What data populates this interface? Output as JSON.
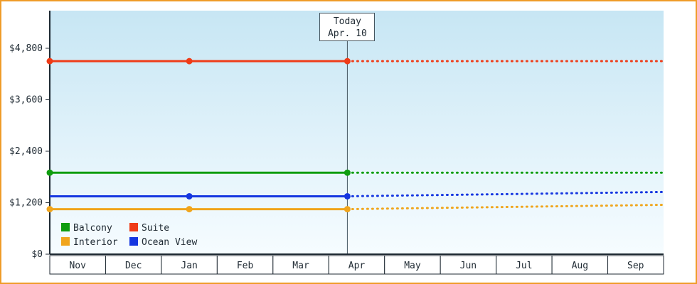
{
  "chart_data": {
    "type": "line",
    "title": "",
    "xlabel": "",
    "ylabel": "",
    "x_categories": [
      "Nov",
      "Dec",
      "Jan",
      "Feb",
      "Mar",
      "Apr",
      "May",
      "Jun",
      "Jul",
      "Aug",
      "Sep"
    ],
    "y_ticks": [
      {
        "value": 0,
        "label": "$0"
      },
      {
        "value": 1200,
        "label": "$1,200"
      },
      {
        "value": 2400,
        "label": "$2,400"
      },
      {
        "value": 3600,
        "label": "$3,600"
      },
      {
        "value": 4800,
        "label": "$4,800"
      }
    ],
    "ylim": [
      0,
      4800
    ],
    "today_marker": {
      "line1": "Today",
      "line2": "Apr. 10",
      "x_month_index": 5.333
    },
    "legend_position": "bottom-left",
    "series": [
      {
        "name": "Balcony",
        "color": "#0f9d0f",
        "solid": [
          [
            0,
            1900
          ],
          [
            5.333,
            1900
          ]
        ],
        "dotted": [
          [
            5.333,
            1900
          ],
          [
            11,
            1900
          ]
        ],
        "markers": [
          [
            0,
            1900
          ],
          [
            5.333,
            1900
          ]
        ]
      },
      {
        "name": "Suite",
        "color": "#ef3b17",
        "solid": [
          [
            0,
            4500
          ],
          [
            2.5,
            4500
          ],
          [
            5.333,
            4500
          ]
        ],
        "dotted": [
          [
            5.333,
            4500
          ],
          [
            11,
            4500
          ]
        ],
        "markers": [
          [
            0,
            4500
          ],
          [
            2.5,
            4500
          ],
          [
            5.333,
            4500
          ]
        ]
      },
      {
        "name": "Interior",
        "color": "#f0a51c",
        "solid": [
          [
            0,
            1050
          ],
          [
            2.5,
            1050
          ],
          [
            5.333,
            1050
          ]
        ],
        "dotted": [
          [
            5.333,
            1050
          ],
          [
            11,
            1150
          ]
        ],
        "markers": [
          [
            0,
            1050
          ],
          [
            2.5,
            1050
          ],
          [
            5.333,
            1050
          ]
        ]
      },
      {
        "name": "Ocean View",
        "color": "#1536e0",
        "solid": [
          [
            0,
            1350
          ],
          [
            2.5,
            1350
          ],
          [
            5.333,
            1350
          ]
        ],
        "dotted": [
          [
            5.333,
            1350
          ],
          [
            11,
            1450
          ]
        ],
        "markers": [
          [
            2.5,
            1350
          ],
          [
            5.333,
            1350
          ]
        ]
      }
    ],
    "colors": {
      "frame_border": "#ef9c28",
      "axis": "#1f2a33",
      "text": "#1f2a33",
      "today_line": "#44555f",
      "plot_top": "#c7e6f4",
      "plot_bottom": "#f6fcff",
      "month_cell_bg": "#ffffff"
    }
  }
}
